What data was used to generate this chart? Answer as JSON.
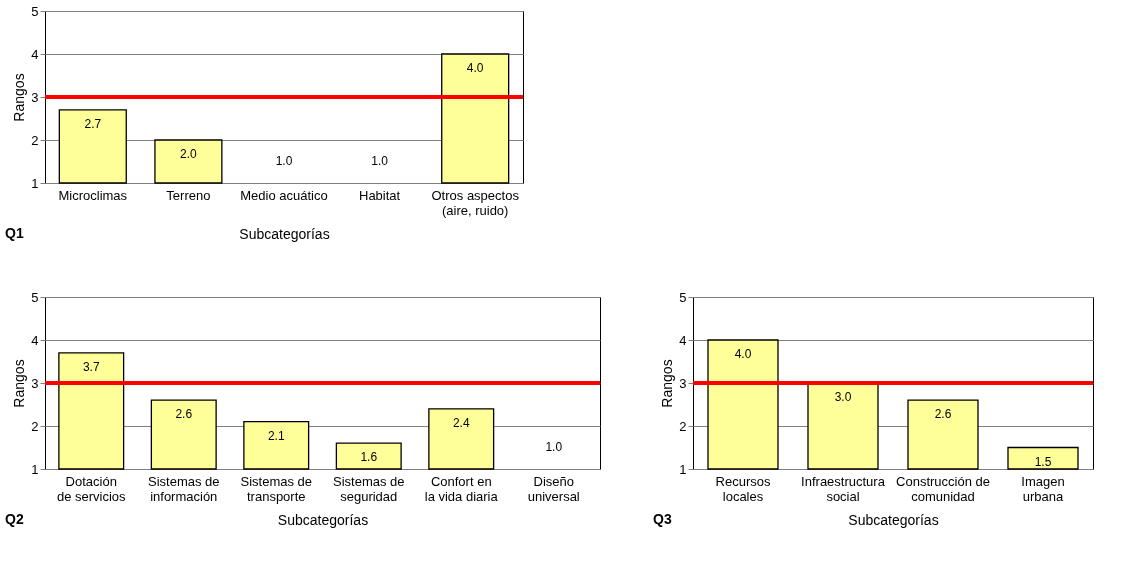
{
  "chart_data": [
    {
      "type": "bar",
      "title": "Q1",
      "xlabel": "Subcategorías",
      "ylabel": "Rangos",
      "categories": [
        "Microclimas",
        "Terreno",
        "Medio acuático",
        "Habitat",
        "Otros  aspectos\n(aire, ruido)"
      ],
      "values": [
        2.7,
        2.0,
        1.0,
        1.0,
        4.0
      ],
      "value_labels": [
        "2.7",
        "2.0",
        "1.0",
        "1.0",
        "4.0"
      ],
      "color": "#ffff99",
      "ylim": [
        1,
        5
      ],
      "yticks": [
        1,
        2,
        3,
        4,
        5
      ],
      "grid": "y",
      "ref_lines": [
        {
          "axis": "y",
          "value": 3,
          "color": "#ff0000"
        }
      ]
    },
    {
      "type": "bar",
      "title": "Q2",
      "xlabel": "Subcategorías",
      "ylabel": "Rangos",
      "categories": [
        "Dotación\nde servicios",
        "Sistemas de\ninformación",
        "Sistemas de\ntransporte",
        "Sistemas de\nseguridad",
        "Confort en\nla vida diaria",
        "Diseño\nuniversal"
      ],
      "values": [
        3.7,
        2.6,
        2.1,
        1.6,
        2.4,
        1.0
      ],
      "value_labels": [
        "3.7",
        "2.6",
        "2.1",
        "1.6",
        "2.4",
        "1.0"
      ],
      "color": "#ffff99",
      "ylim": [
        1,
        5
      ],
      "yticks": [
        1,
        2,
        3,
        4,
        5
      ],
      "grid": "y",
      "ref_lines": [
        {
          "axis": "y",
          "value": 3,
          "color": "#ff0000"
        }
      ]
    },
    {
      "type": "bar",
      "title": "Q3",
      "xlabel": "Subcategorías",
      "ylabel": "Rangos",
      "categories": [
        "Recursos\nlocales",
        "Infraestructura\nsocial",
        "Construcción de\ncomunidad",
        "Imagen\nurbana"
      ],
      "values": [
        4.0,
        3.0,
        2.6,
        1.5
      ],
      "value_labels": [
        "4.0",
        "3.0",
        "2.6",
        "1.5"
      ],
      "color": "#ffff99",
      "ylim": [
        1,
        5
      ],
      "yticks": [
        1,
        2,
        3,
        4,
        5
      ],
      "grid": "y",
      "ref_lines": [
        {
          "axis": "y",
          "value": 3,
          "color": "#ff0000"
        }
      ]
    }
  ]
}
